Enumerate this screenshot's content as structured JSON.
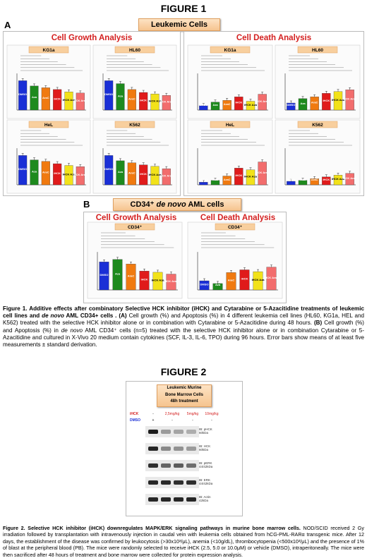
{
  "figure1": {
    "title": "FIGURE 1",
    "panelA": {
      "letter": "A",
      "banner": "Leukemic Cells",
      "growth_title": "Cell Growth Analysis",
      "death_title": "Cell Death Analysis"
    },
    "panelB": {
      "letter": "B",
      "banner_pre": "CD34⁺ ",
      "banner_em": "de novo",
      "banner_post": " AML cells",
      "growth_title": "Cell Growth Analysis",
      "death_title": "Cell Death Analysis"
    },
    "caption": {
      "bold1": "Figure 1. Additive effects after combinatory Selective HCK inhibitor (iHCK) and Cytarabine or 5-Azacitidine treatments of leukemic cell lines and ",
      "bold_em": "de novo",
      "bold2": " AML CD34+ cells . (A)",
      "text1": " Cell growth (%) and Apoptosis (%) in 4 different leukemia cell lines (HL60, KG1a, HEL and K562) treated with the selective HCK inhibitor alone or in combination with Cytarabine or 5-Azacitidine during 48 hours. ",
      "bold3": "(B)",
      "text2": " Cell growth (%) and Apoptosis (%) in ",
      "em": "de novo",
      "text3": " AML CD34⁺ cells (n=5) treated with the selective HCK inhibitor alone or in combination Cytarabine or 5-Azacitidine and cultured in X-Vivo 20 medium contain cytokines (SCF, IL-3, IL-6, TPO) during 96 hours. Error bars show means of at least five measurements ± standard derivation."
    }
  },
  "figure2": {
    "title": "FIGURE 2",
    "banner": [
      "Leukemic Murine",
      "Bone Marrow Cells",
      "48h treatment"
    ],
    "rows": [
      {
        "label": "iHCK",
        "cells": [
          "-",
          "2,5mg/kg",
          "5mg/kg",
          "10mg/kg"
        ]
      },
      {
        "label": "DMSO",
        "cells": [
          "+",
          "-",
          "-",
          "-"
        ]
      }
    ],
    "blots": [
      {
        "name": "IB: pHCK",
        "size": "60kDa"
      },
      {
        "name": "IB: HCK",
        "size": "60kDa"
      },
      {
        "name": "IB: pERK",
        "size": "44/42kDa"
      },
      {
        "name": "IB: ERK",
        "size": "44/42kDa"
      },
      {
        "name": "IB: Actin",
        "size": "42kDa"
      }
    ],
    "caption": {
      "bold": "Figure 2. Selective HCK inhibitor (iHCK) downregulates MAPK/ERK signaling pathways in murine bone marrow cells.",
      "text": " NOD/SCID received 2 Gy irradiation followed by transplantation with intravenously injection in caudal vein with leukemia cells obtained from hCG-PML-RARα transgenic mice. After 12 days, the establishment of the disease was confirmed by leukocytosis (>30x10³/μL), anemia (<10g/dL), thrombocytopenia (<500x10³/μL) and the presence of 1% of blast at the peripheral blood (PB). The mice were randomly selected to receive iHCK (2.5, 5.0 or 10.0μM) or vehicle (DMSO), intraperitoneally. The mice were then sacrificed after 48 hours of treatment and bone marrow were collected for protein expression analysis."
    }
  },
  "colors": {
    "DMSO": "#1a2fd6",
    "Aza": "#1e8a1e",
    "AraC": "#f07a10",
    "iHCK": "#e01b1b",
    "iHCK_Aza": "#f2e21a",
    "iHCK_AraC": "#f26d6d",
    "title_red": "#d42020"
  },
  "chart_data": [
    {
      "type": "bar",
      "panel": "A",
      "analysis": "growth",
      "title": "KG1a",
      "bar_labels": [
        "DMSO",
        "Aza",
        "AraC",
        "iHCK",
        "iHCK Aza",
        "iHCK AraC"
      ],
      "values": [
        100,
        82,
        76,
        70,
        62,
        58
      ]
    },
    {
      "type": "bar",
      "panel": "A",
      "analysis": "growth",
      "title": "HL60",
      "bar_labels": [
        "DMSO",
        "Aza",
        "AraC",
        "iHCK",
        "iHCK Aza",
        "iHCK AraC"
      ],
      "values": [
        100,
        90,
        70,
        60,
        55,
        50
      ]
    },
    {
      "type": "bar",
      "panel": "A",
      "analysis": "growth",
      "title": "HeL",
      "bar_labels": [
        "DMSO",
        "Aza",
        "AraC",
        "iHCK",
        "iHCK Aza",
        "iHCK AraC"
      ],
      "values": [
        100,
        85,
        80,
        72,
        66,
        62
      ]
    },
    {
      "type": "bar",
      "panel": "A",
      "analysis": "growth",
      "title": "K562",
      "bar_labels": [
        "DMSO",
        "Aza",
        "AraC",
        "iHCK",
        "iHCK Aza",
        "iHCK AraC"
      ],
      "values": [
        100,
        82,
        75,
        68,
        63,
        55
      ]
    },
    {
      "type": "bar",
      "panel": "A",
      "analysis": "death",
      "title": "KG1a",
      "bar_labels": [
        "DMSO",
        "Aza",
        "AraC",
        "iHCK",
        "iHCK Aza",
        "iHCK AraC"
      ],
      "values": [
        10,
        18,
        22,
        30,
        20,
        36
      ]
    },
    {
      "type": "bar",
      "panel": "A",
      "analysis": "death",
      "title": "HL60",
      "bar_labels": [
        "DMSO",
        "Aza",
        "AraC",
        "iHCK",
        "iHCK Aza",
        "iHCK AraC"
      ],
      "values": [
        16,
        26,
        30,
        38,
        42,
        46
      ]
    },
    {
      "type": "bar",
      "panel": "A",
      "analysis": "death",
      "title": "HeL",
      "bar_labels": [
        "DMSO",
        "Aza",
        "AraC",
        "iHCK",
        "iHCK Aza",
        "iHCK AraC"
      ],
      "values": [
        6,
        10,
        20,
        38,
        34,
        52
      ]
    },
    {
      "type": "bar",
      "panel": "A",
      "analysis": "death",
      "title": "K562",
      "bar_labels": [
        "DMSO",
        "Aza",
        "AraC",
        "iHCK",
        "iHCK Aza",
        "iHCK AraC"
      ],
      "values": [
        8,
        10,
        14,
        18,
        22,
        26
      ]
    },
    {
      "type": "bar",
      "panel": "B",
      "analysis": "growth",
      "title": "CD34⁺",
      "bar_labels": [
        "DMSO",
        "Aza",
        "AraC",
        "iHCK",
        "iHCK Aza",
        "iHCK AraC"
      ],
      "values": [
        92,
        100,
        85,
        62,
        58,
        52
      ]
    },
    {
      "type": "bar",
      "panel": "B",
      "analysis": "death",
      "title": "CD34⁺",
      "bar_labels": [
        "DMSO",
        "Aza",
        "AraC",
        "iHCK",
        "iHCK Aza",
        "iHCK AraC"
      ],
      "values": [
        20,
        14,
        38,
        44,
        40,
        50
      ]
    }
  ]
}
